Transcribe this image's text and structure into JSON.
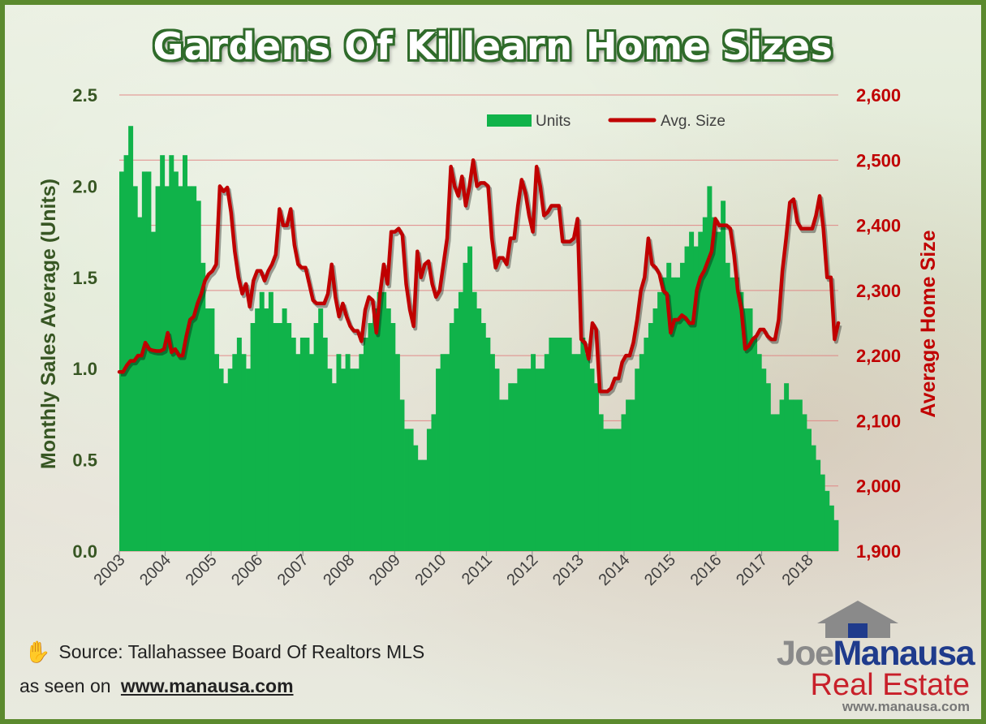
{
  "chart_data": {
    "type": "bar+line",
    "title": "Gardens Of Killearn Home Sizes",
    "ylabel_left": "Monthly Sales Average (Units)",
    "ylabel_right": "Average Home Size",
    "ylim_left": [
      0,
      2.5
    ],
    "ylim_right": [
      1900,
      2600
    ],
    "left_ticks": [
      "0.0",
      "0.5",
      "1.0",
      "1.5",
      "2.0",
      "2.5"
    ],
    "right_ticks": [
      "1,900",
      "2,000",
      "2,100",
      "2,200",
      "2,300",
      "2,400",
      "2,500",
      "2,600"
    ],
    "x_start": 2003.0,
    "x_end": 2018.67,
    "x_tick_labels": [
      "2003",
      "2004",
      "2005",
      "2006",
      "2007",
      "2008",
      "2009",
      "2010",
      "2011",
      "2012",
      "2013",
      "2014",
      "2015",
      "2016",
      "2017",
      "2018"
    ],
    "grid": true,
    "legend_position": "top",
    "series": [
      {
        "name": "Units",
        "type": "bar",
        "color": "#10b34a",
        "values": [
          2.08,
          2.17,
          2.33,
          2.0,
          1.83,
          2.08,
          2.08,
          1.75,
          2.0,
          2.17,
          2.0,
          2.17,
          2.08,
          2.0,
          2.17,
          2.0,
          2.0,
          1.92,
          1.58,
          1.33,
          1.33,
          1.08,
          1.0,
          0.92,
          1.0,
          1.08,
          1.17,
          1.08,
          1.0,
          1.25,
          1.33,
          1.42,
          1.33,
          1.42,
          1.25,
          1.25,
          1.33,
          1.25,
          1.17,
          1.08,
          1.17,
          1.17,
          1.08,
          1.25,
          1.33,
          1.17,
          1.0,
          0.92,
          1.08,
          1.0,
          1.08,
          1.0,
          1.0,
          1.08,
          1.17,
          1.25,
          1.33,
          1.42,
          1.42,
          1.33,
          1.25,
          1.08,
          0.83,
          0.67,
          0.67,
          0.58,
          0.5,
          0.5,
          0.67,
          0.75,
          1.0,
          1.08,
          1.08,
          1.25,
          1.33,
          1.42,
          1.58,
          1.67,
          1.42,
          1.33,
          1.25,
          1.17,
          1.08,
          1.0,
          0.83,
          0.83,
          0.92,
          0.92,
          1.0,
          1.0,
          1.0,
          1.08,
          1.0,
          1.0,
          1.08,
          1.17,
          1.17,
          1.17,
          1.17,
          1.17,
          1.08,
          1.08,
          1.17,
          1.08,
          1.0,
          0.92,
          0.75,
          0.67,
          0.67,
          0.67,
          0.67,
          0.75,
          0.83,
          0.83,
          1.0,
          1.08,
          1.17,
          1.25,
          1.33,
          1.42,
          1.5,
          1.58,
          1.5,
          1.5,
          1.58,
          1.67,
          1.75,
          1.67,
          1.75,
          1.83,
          2.0,
          1.83,
          1.75,
          1.92,
          1.58,
          1.5,
          1.5,
          1.42,
          1.33,
          1.33,
          1.17,
          1.08,
          1.0,
          0.92,
          0.75,
          0.75,
          0.83,
          0.92,
          0.83,
          0.83,
          0.83,
          0.75,
          0.67,
          0.58,
          0.5,
          0.42,
          0.33,
          0.25,
          0.17
        ]
      },
      {
        "name": "Avg. Size",
        "type": "line",
        "color": "#c00000",
        "axis": "right",
        "values": [
          2175,
          2175,
          2185,
          2192,
          2192,
          2200,
          2200,
          2220,
          2210,
          2208,
          2207,
          2207,
          2210,
          2235,
          2205,
          2210,
          2200,
          2200,
          2230,
          2255,
          2260,
          2280,
          2295,
          2315,
          2325,
          2330,
          2340,
          2460,
          2452,
          2458,
          2420,
          2360,
          2320,
          2295,
          2310,
          2275,
          2315,
          2330,
          2330,
          2315,
          2330,
          2340,
          2355,
          2425,
          2400,
          2400,
          2425,
          2370,
          2340,
          2335,
          2335,
          2310,
          2285,
          2280,
          2280,
          2280,
          2295,
          2340,
          2290,
          2260,
          2280,
          2260,
          2245,
          2238,
          2238,
          2222,
          2270,
          2290,
          2285,
          2235,
          2295,
          2340,
          2310,
          2390,
          2390,
          2395,
          2385,
          2310,
          2270,
          2245,
          2360,
          2320,
          2340,
          2345,
          2310,
          2290,
          2300,
          2340,
          2380,
          2490,
          2460,
          2445,
          2475,
          2430,
          2460,
          2500,
          2460,
          2465,
          2465,
          2460,
          2380,
          2335,
          2350,
          2350,
          2340,
          2380,
          2380,
          2430,
          2470,
          2450,
          2415,
          2390,
          2490,
          2460,
          2415,
          2420,
          2430,
          2430,
          2430,
          2375,
          2375,
          2375,
          2380,
          2410,
          2225,
          2220,
          2195,
          2250,
          2240,
          2145,
          2145,
          2145,
          2150,
          2165,
          2165,
          2190,
          2200,
          2200,
          2220,
          2255,
          2300,
          2320,
          2380,
          2340,
          2335,
          2325,
          2300,
          2295,
          2235,
          2255,
          2255,
          2262,
          2258,
          2250,
          2250,
          2300,
          2320,
          2330,
          2345,
          2360,
          2410,
          2400,
          2400,
          2400,
          2395,
          2355,
          2300,
          2270,
          2210,
          2215,
          2225,
          2230,
          2240,
          2240,
          2230,
          2225,
          2225,
          2255,
          2330,
          2380,
          2435,
          2440,
          2405,
          2395,
          2395,
          2395,
          2395,
          2415,
          2445,
          2395,
          2320,
          2320,
          2225,
          2250
        ]
      }
    ]
  },
  "footer": {
    "source": "Source: Tallahassee Board Of Realtors MLS",
    "seen_on": "as seen on",
    "url": "www.manausa.com"
  },
  "logo": {
    "joe": "Joe",
    "manausa": "Manausa",
    "real_estate": "Real Estate",
    "url": "www.manausa.com"
  },
  "colors": {
    "border": "#5b8a2e",
    "title_outline": "#2f6b2a",
    "left_axis_text": "#375623",
    "right_axis_text": "#c00000"
  },
  "icons": {
    "source": "hand-icon"
  }
}
